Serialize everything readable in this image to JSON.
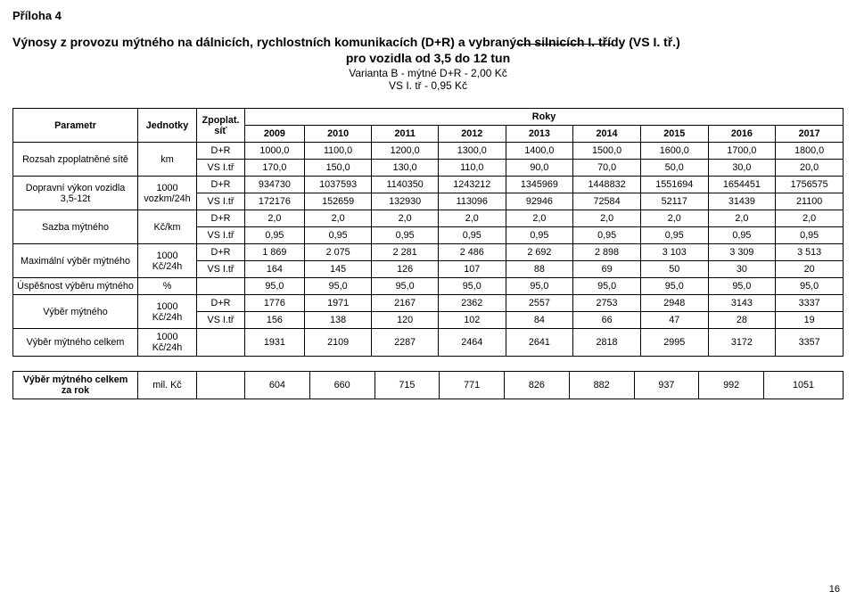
{
  "appendix_label": "Příloha 4",
  "title": "Výnosy z provozu mýtného na dálnicích, rychlostních komunikacích (D+R) a vybraných silnicích I. třídy (VS I. tř.)",
  "subtitle": "pro vozidla od 3,5 do 12 tun",
  "variant_line1": "Varianta B - mýtné D+R - 2,00 Kč",
  "variant_line2": "VS I. tř - 0,95 Kč",
  "page_number": "16",
  "headers": {
    "param": "Parametr",
    "units": "Jednotky",
    "zpoplat": "Zpoplat. síť",
    "years_label": "Roky",
    "years": [
      "2009",
      "2010",
      "2011",
      "2012",
      "2013",
      "2014",
      "2015",
      "2016",
      "2017"
    ]
  },
  "rows": [
    {
      "label": "Rozsah zpoplatněné sítě",
      "unit": "km",
      "sub": [
        {
          "zp": "D+R",
          "vals": [
            "1000,0",
            "1100,0",
            "1200,0",
            "1300,0",
            "1400,0",
            "1500,0",
            "1600,0",
            "1700,0",
            "1800,0"
          ]
        },
        {
          "zp": "VS I.tř",
          "vals": [
            "170,0",
            "150,0",
            "130,0",
            "110,0",
            "90,0",
            "70,0",
            "50,0",
            "30,0",
            "20,0"
          ]
        }
      ]
    },
    {
      "label": "Dopravní výkon vozidla 3,5-12t",
      "unit": "1000 vozkm/24h",
      "sub": [
        {
          "zp": "D+R",
          "vals": [
            "934730",
            "1037593",
            "1140350",
            "1243212",
            "1345969",
            "1448832",
            "1551694",
            "1654451",
            "1756575"
          ]
        },
        {
          "zp": "VS I.tř",
          "vals": [
            "172176",
            "152659",
            "132930",
            "113096",
            "92946",
            "72584",
            "52117",
            "31439",
            "21100"
          ]
        }
      ]
    },
    {
      "label": "Sazba mýtného",
      "unit": "Kč/km",
      "sub": [
        {
          "zp": "D+R",
          "vals": [
            "2,0",
            "2,0",
            "2,0",
            "2,0",
            "2,0",
            "2,0",
            "2,0",
            "2,0",
            "2,0"
          ]
        },
        {
          "zp": "VS I.tř",
          "vals": [
            "0,95",
            "0,95",
            "0,95",
            "0,95",
            "0,95",
            "0,95",
            "0,95",
            "0,95",
            "0,95"
          ]
        }
      ]
    },
    {
      "label": "Maximální výběr mýtného",
      "unit": "1000 Kč/24h",
      "sub": [
        {
          "zp": "D+R",
          "vals": [
            "1 869",
            "2 075",
            "2 281",
            "2 486",
            "2 692",
            "2 898",
            "3 103",
            "3 309",
            "3 513"
          ]
        },
        {
          "zp": "VS I.tř",
          "vals": [
            "164",
            "145",
            "126",
            "107",
            "88",
            "69",
            "50",
            "30",
            "20"
          ]
        }
      ]
    },
    {
      "label": "Úspěšnost výběru mýtného",
      "unit": "%",
      "sub": [
        {
          "zp": "",
          "vals": [
            "95,0",
            "95,0",
            "95,0",
            "95,0",
            "95,0",
            "95,0",
            "95,0",
            "95,0",
            "95,0"
          ]
        }
      ]
    },
    {
      "label": "Výběr mýtného",
      "unit": "1000 Kč/24h",
      "sub": [
        {
          "zp": "D+R",
          "vals": [
            "1776",
            "1971",
            "2167",
            "2362",
            "2557",
            "2753",
            "2948",
            "3143",
            "3337"
          ]
        },
        {
          "zp": "VS I.tř",
          "vals": [
            "156",
            "138",
            "120",
            "102",
            "84",
            "66",
            "47",
            "28",
            "19"
          ]
        }
      ]
    },
    {
      "label": "Výběr mýtného celkem",
      "unit": "1000 Kč/24h",
      "sub": [
        {
          "zp": "",
          "vals": [
            "1931",
            "2109",
            "2287",
            "2464",
            "2641",
            "2818",
            "2995",
            "3172",
            "3357"
          ]
        }
      ]
    }
  ],
  "summary": {
    "label": "Výběr mýtného celkem za rok",
    "unit": "mil. Kč",
    "zp": "",
    "vals": [
      "604",
      "660",
      "715",
      "771",
      "826",
      "882",
      "937",
      "992",
      "1051"
    ]
  },
  "colors": {
    "text": "#000000",
    "background": "#ffffff",
    "border": "#000000"
  }
}
